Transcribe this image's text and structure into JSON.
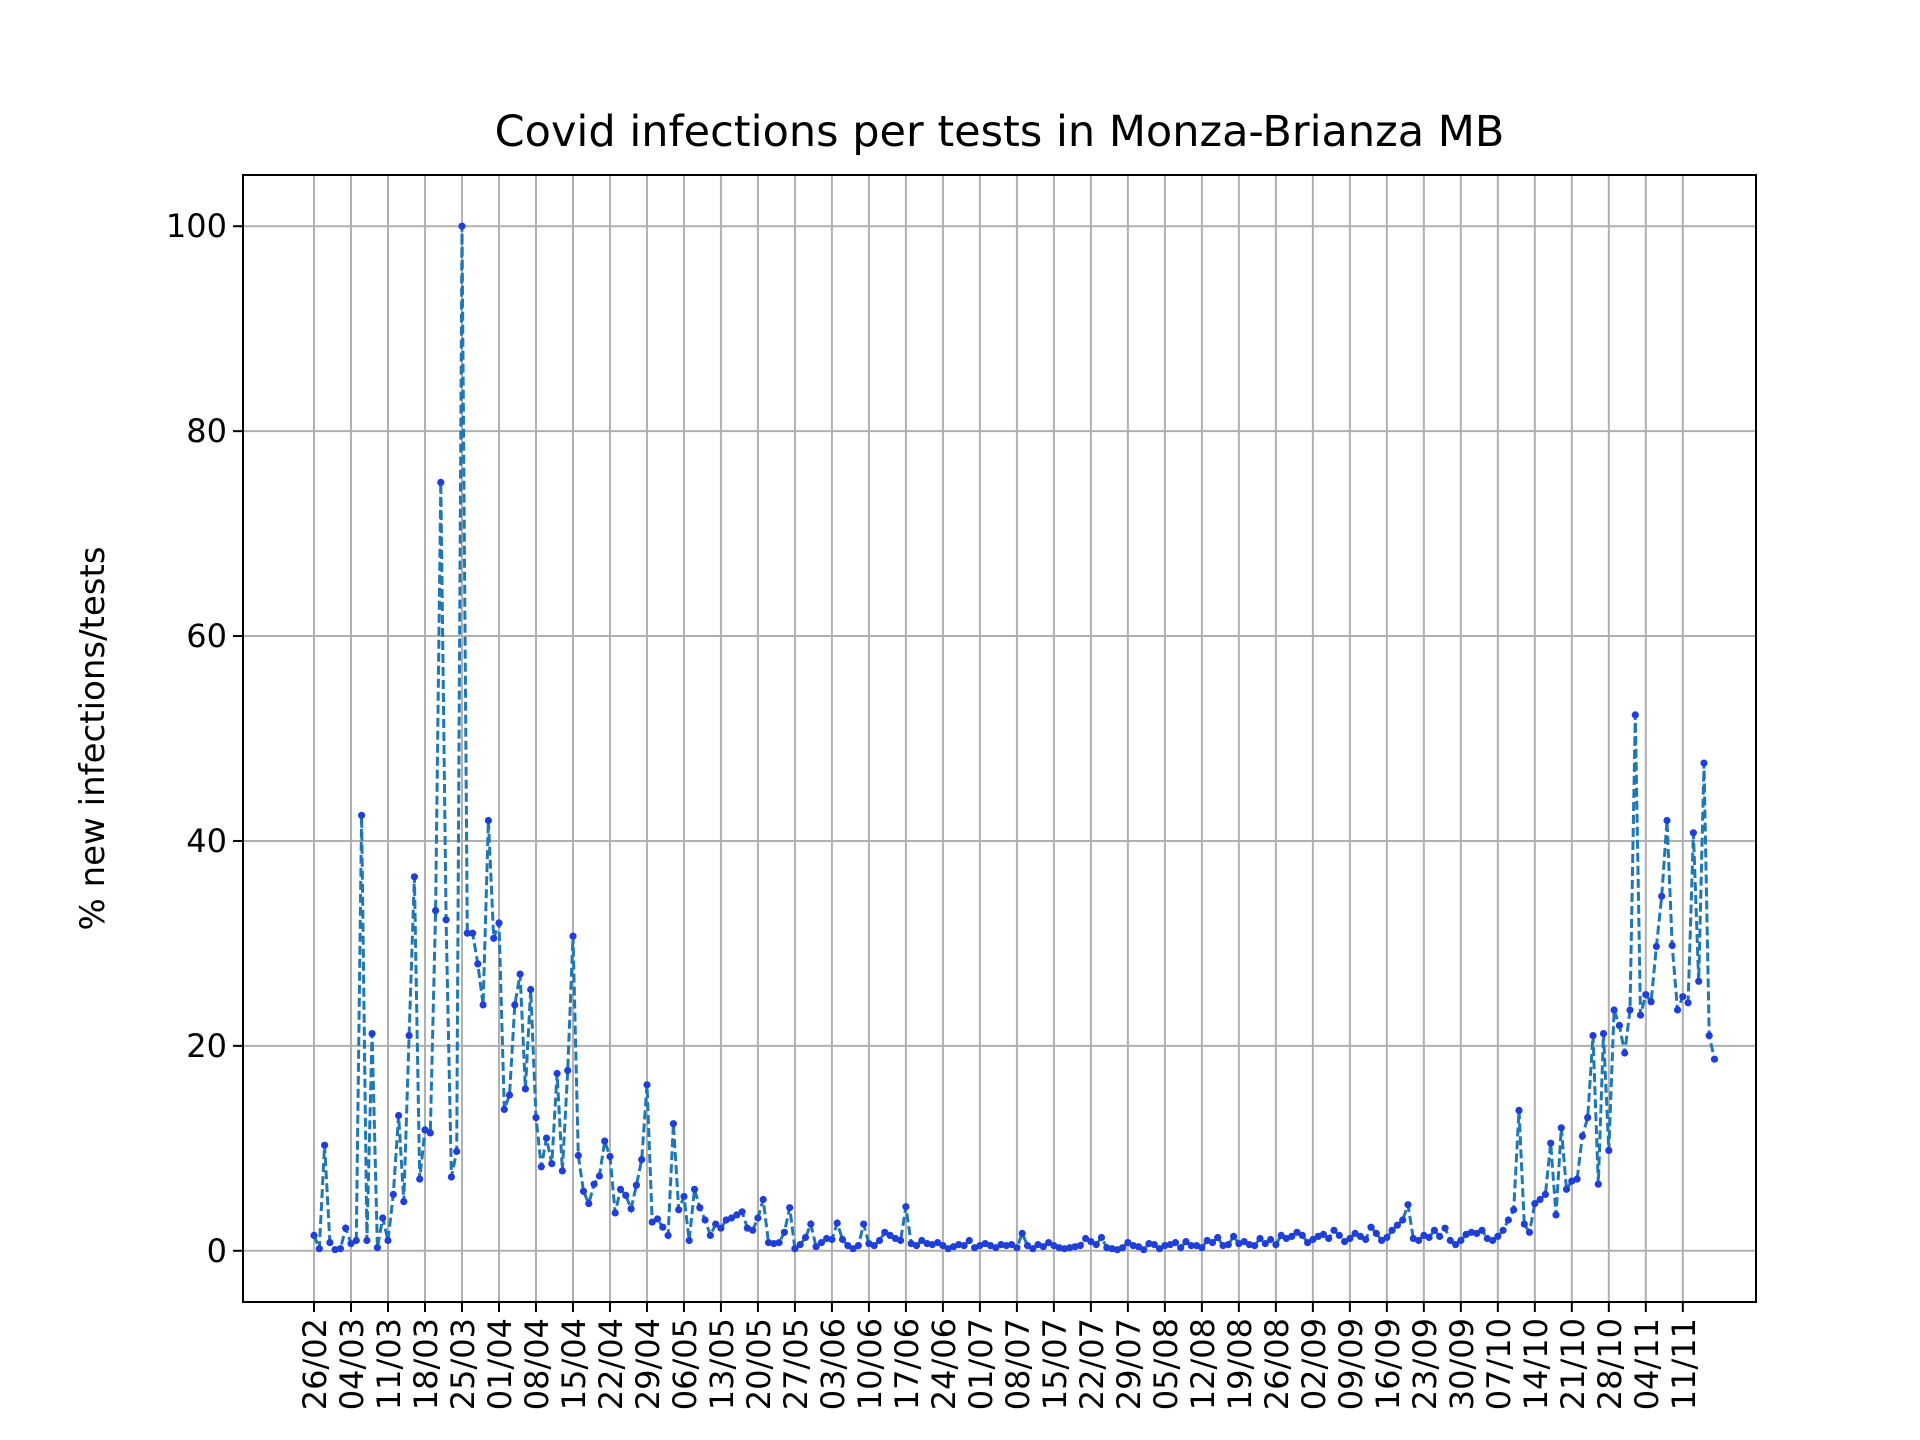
{
  "chart_data": {
    "type": "line",
    "title": "Covid infections per tests in Monza-Brianza MB",
    "xlabel": "",
    "ylabel": "% new infections/tests",
    "ylim": [
      -5,
      105
    ],
    "yticks": [
      0,
      20,
      40,
      60,
      80,
      100
    ],
    "grid": true,
    "legend": "none",
    "x_start": "26/02",
    "xticks": [
      "26/02",
      "04/03",
      "11/03",
      "18/03",
      "25/03",
      "01/04",
      "08/04",
      "15/04",
      "22/04",
      "29/04",
      "06/05",
      "13/05",
      "20/05",
      "27/05",
      "03/06",
      "10/06",
      "17/06",
      "24/06",
      "01/07",
      "08/07",
      "15/07",
      "22/07",
      "29/07",
      "05/08",
      "12/08",
      "19/08",
      "26/08",
      "02/09",
      "09/09",
      "16/09",
      "23/09",
      "30/09",
      "07/10",
      "14/10",
      "21/10",
      "28/10",
      "04/11",
      "11/11"
    ],
    "colors": {
      "line": "#1f77b4",
      "marker": "#1f3fd8",
      "grid": "#b0b0b0"
    },
    "series": [
      {
        "values": [
          1.5,
          0.2,
          10.3,
          0.8,
          0.1,
          0.2,
          2.2,
          0.7,
          1.0,
          42.5,
          1.0,
          21.2,
          0.3,
          3.2,
          1.0,
          5.5,
          13.2,
          4.8,
          21.0,
          36.5,
          7.0,
          11.8,
          11.5,
          33.2,
          75.0,
          32.3,
          7.2,
          9.7,
          100.0,
          31.0,
          31.0,
          28.0,
          24.0,
          42.0,
          30.5,
          32.0,
          13.8,
          15.2,
          24.0,
          27.0,
          15.8,
          25.5,
          13.0,
          8.2,
          11.0,
          8.5,
          17.3,
          7.8,
          17.6,
          30.7,
          9.3,
          5.8,
          4.6,
          6.5,
          7.3,
          10.7,
          9.2,
          3.7,
          6.0,
          5.4,
          4.1,
          6.4,
          8.9,
          16.2,
          2.8,
          3.1,
          2.3,
          1.5,
          12.4,
          4.0,
          5.3,
          1.0,
          6.0,
          4.2,
          3.0,
          1.5,
          2.6,
          2.2,
          3.0,
          3.2,
          3.5,
          3.8,
          2.2,
          2.0,
          3.2,
          5.0,
          0.8,
          0.7,
          0.8,
          1.8,
          4.2,
          0.2,
          0.6,
          1.3,
          2.6,
          0.4,
          0.8,
          1.2,
          1.1,
          2.7,
          1.1,
          0.5,
          0.2,
          0.5,
          2.6,
          0.7,
          0.5,
          1.0,
          1.8,
          1.5,
          1.2,
          1.0,
          4.3,
          0.7,
          0.5,
          1.0,
          0.7,
          0.6,
          0.8,
          0.5,
          0.2,
          0.4,
          0.6,
          0.5,
          1.0,
          0.3,
          0.5,
          0.7,
          0.5,
          0.3,
          0.6,
          0.5,
          0.6,
          0.3,
          1.7,
          0.5,
          0.2,
          0.6,
          0.4,
          0.8,
          0.5,
          0.3,
          0.2,
          0.3,
          0.4,
          0.5,
          1.2,
          0.9,
          0.6,
          1.3,
          0.3,
          0.2,
          0.1,
          0.3,
          0.8,
          0.5,
          0.4,
          0.1,
          0.7,
          0.6,
          0.2,
          0.5,
          0.6,
          0.8,
          0.3,
          0.9,
          0.5,
          0.5,
          0.3,
          1.0,
          0.8,
          1.3,
          0.5,
          0.6,
          1.4,
          0.7,
          0.9,
          0.6,
          0.5,
          1.2,
          0.7,
          1.1,
          0.6,
          1.5,
          1.2,
          1.4,
          1.8,
          1.5,
          0.8,
          1.1,
          1.4,
          1.6,
          1.2,
          2.0,
          1.5,
          0.9,
          1.2,
          1.7,
          1.4,
          1.1,
          2.3,
          1.7,
          1.0,
          1.3,
          2.0,
          2.5,
          3.0,
          4.5,
          1.2,
          1.0,
          1.5,
          1.3,
          2.0,
          1.4,
          2.2,
          1.0,
          0.6,
          1.0,
          1.6,
          1.8,
          1.7,
          2.0,
          1.2,
          1.0,
          1.4,
          2.0,
          3.0,
          4.0,
          13.7,
          2.6,
          1.8,
          4.6,
          5.0,
          5.5,
          10.5,
          3.5,
          12.0,
          6.0,
          6.8,
          7.0,
          11.2,
          13.0,
          21.0,
          6.5,
          21.2,
          9.8,
          23.5,
          22.0,
          19.3,
          23.5,
          52.3,
          23.0,
          25.0,
          24.3,
          29.7,
          34.6,
          42.0,
          29.8,
          23.5,
          24.8,
          24.2,
          40.8,
          26.3,
          47.6,
          21.0,
          18.7
        ]
      }
    ]
  }
}
